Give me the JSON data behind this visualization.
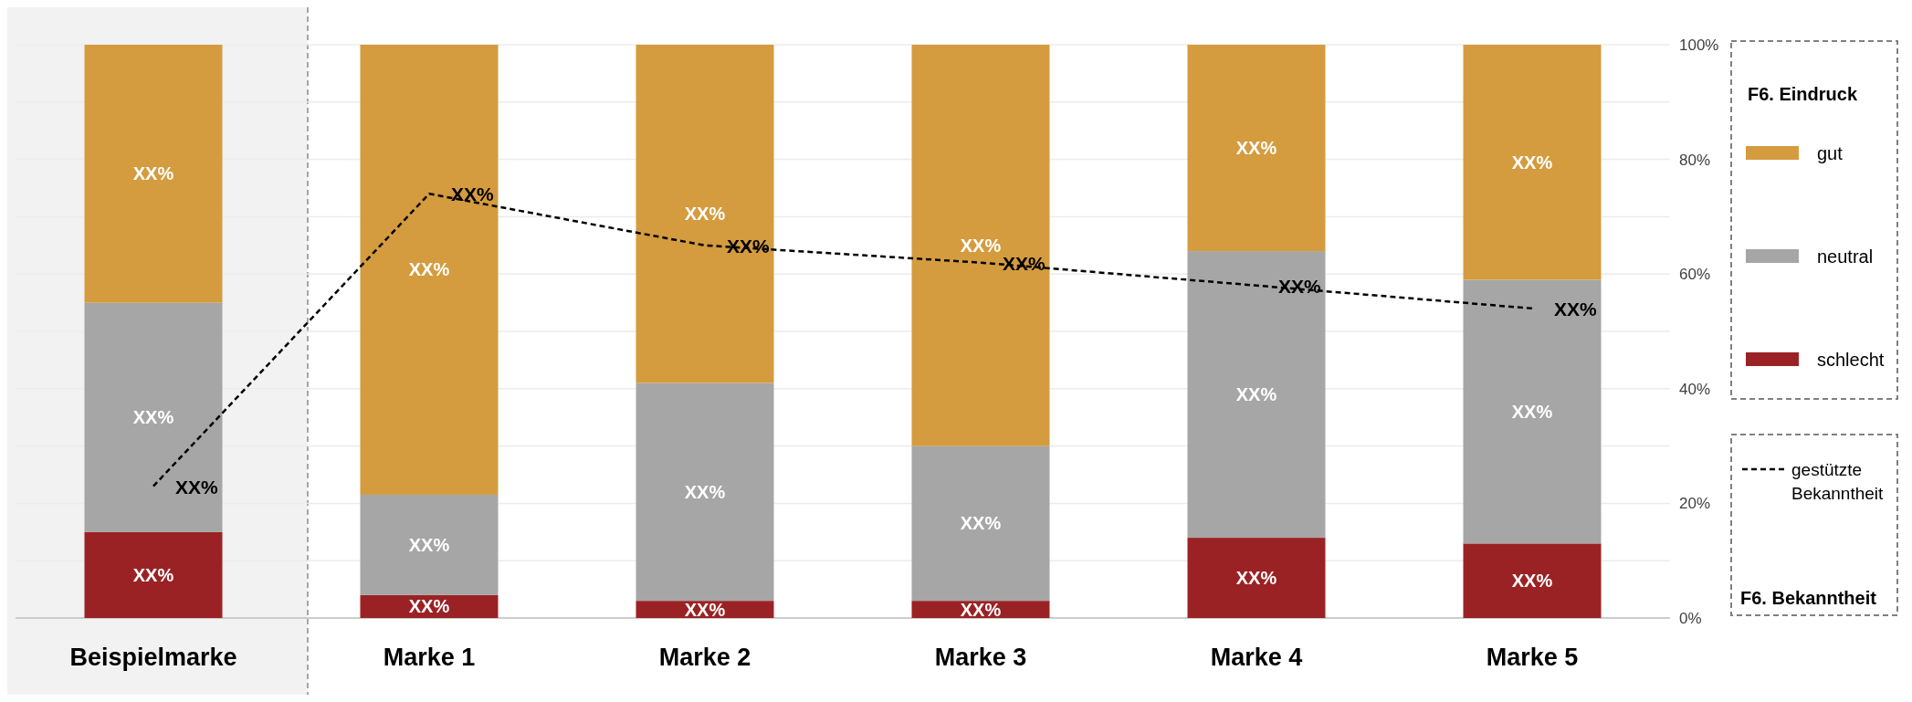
{
  "chart_data": {
    "type": "bar",
    "stacked": true,
    "categories": [
      "Beispielmarke",
      "Marke 1",
      "Marke 2",
      "Marke 3",
      "Marke 4",
      "Marke 5"
    ],
    "series": [
      {
        "name": "schlecht",
        "color": "#9b2224",
        "values": [
          15,
          4,
          3,
          3,
          14,
          13
        ],
        "value_labels": [
          "XX%",
          "XX%",
          "XX%",
          "XX%",
          "XX%",
          "XX%"
        ]
      },
      {
        "name": "neutral",
        "color": "#a6a6a6",
        "values": [
          40,
          17.5,
          38,
          27,
          50,
          46
        ],
        "value_labels": [
          "XX%",
          "XX%",
          "XX%",
          "XX%",
          "XX%",
          "XX%"
        ]
      },
      {
        "name": "gut",
        "color": "#d49c3f",
        "values": [
          45,
          78.5,
          59,
          70,
          36,
          41
        ],
        "value_labels": [
          "XX%",
          "XX%",
          "XX%",
          "XX%",
          "XX%",
          "XX%"
        ]
      },
      {
        "name": "gestützte Bekanntheit",
        "type": "line",
        "color": "#000000",
        "line_style": "dashed",
        "marker": "none",
        "values": [
          23,
          74,
          65,
          62,
          58,
          54
        ],
        "value_labels": [
          "XX%",
          "XX%",
          "XX%",
          "XX%",
          "XX%",
          "XX%"
        ]
      }
    ],
    "ylim": [
      0,
      100
    ],
    "yticks": [
      {
        "value": 0,
        "label": "0%"
      },
      {
        "value": 10,
        "label": null
      },
      {
        "value": 20,
        "label": "20%"
      },
      {
        "value": 30,
        "label": null
      },
      {
        "value": 40,
        "label": "40%"
      },
      {
        "value": 50,
        "label": null
      },
      {
        "value": 60,
        "label": "60%"
      },
      {
        "value": 70,
        "label": null
      },
      {
        "value": 80,
        "label": "80%"
      },
      {
        "value": 90,
        "label": null
      },
      {
        "value": 100,
        "label": "100%"
      }
    ],
    "grid": "y",
    "legend": "right",
    "legend_title": "F6. Eindruck",
    "bands": [
      {
        "axis": "x",
        "from": "Beispielmarke",
        "to": "Beispielmarke",
        "color": "#f2f2f2"
      }
    ],
    "annotations": [
      "F6. Bekanntheit"
    ]
  }
}
